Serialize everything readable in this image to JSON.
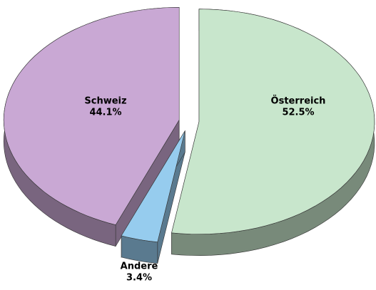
{
  "chart_data": {
    "type": "pie",
    "categories": [
      "Österreich",
      "Andere",
      "Schweiz"
    ],
    "values": [
      52.5,
      3.4,
      44.1
    ],
    "value_labels": [
      "52.5%",
      "3.4%",
      "44.1%"
    ],
    "colors": [
      "#c8e6cc",
      "#96ccee",
      "#c9a8d4"
    ]
  }
}
